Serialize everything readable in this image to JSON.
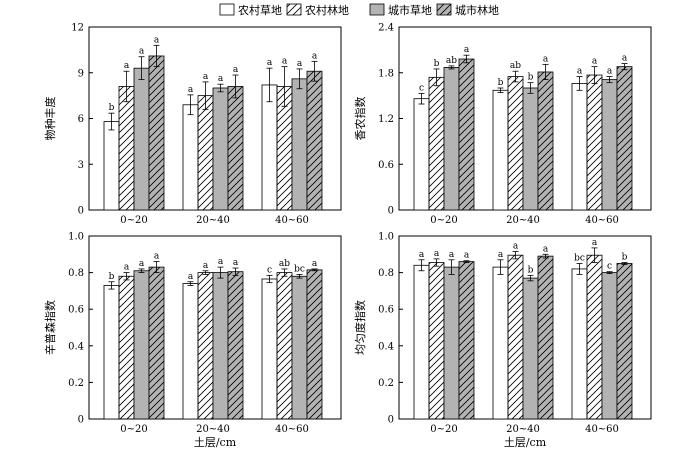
{
  "legend": [
    {
      "name": "农村草地",
      "fill": "#ffffff",
      "hatch": false
    },
    {
      "name": "农村林地",
      "fill": "#ffffff",
      "hatch": true
    },
    {
      "name": "城市草地",
      "fill": "#b3b3b3",
      "hatch": false
    },
    {
      "name": "城市林地",
      "fill": "#b3b3b3",
      "hatch": true
    }
  ],
  "xlabel": "土层/cm",
  "chart_data": [
    {
      "type": "bar",
      "panel": "top-left",
      "ylabel": "物种丰度",
      "categories": [
        "0~20",
        "20~40",
        "40~60"
      ],
      "ylim": [
        0,
        12
      ],
      "yticks": [
        0,
        3,
        6,
        9,
        12
      ],
      "series": [
        {
          "name": "农村草地",
          "values": [
            5.8,
            6.9,
            8.2
          ],
          "errors": [
            0.55,
            0.65,
            1.1
          ],
          "labels": [
            "b",
            "a",
            "a"
          ]
        },
        {
          "name": "农村林地",
          "values": [
            8.1,
            7.5,
            8.1
          ],
          "errors": [
            1.0,
            0.9,
            1.3
          ],
          "labels": [
            "a",
            "a",
            "a"
          ]
        },
        {
          "name": "城市草地",
          "values": [
            9.3,
            8.0,
            8.6
          ],
          "errors": [
            0.75,
            0.25,
            0.65
          ],
          "labels": [
            "a",
            "a",
            "a"
          ]
        },
        {
          "name": "城市林地",
          "values": [
            10.1,
            8.1,
            9.1
          ],
          "errors": [
            0.7,
            0.75,
            0.65
          ],
          "labels": [
            "a",
            "a",
            "a"
          ]
        }
      ]
    },
    {
      "type": "bar",
      "panel": "top-right",
      "ylabel": "香农指数",
      "categories": [
        "0~20",
        "20~40",
        "40~60"
      ],
      "ylim": [
        0,
        2.4
      ],
      "yticks": [
        0,
        0.6,
        1.2,
        1.8,
        2.4
      ],
      "yticklabels": [
        "0",
        "0.6",
        "1.2",
        "1.8",
        "2.4"
      ],
      "series": [
        {
          "name": "农村草地",
          "values": [
            1.46,
            1.57,
            1.66
          ],
          "errors": [
            0.07,
            0.03,
            0.09
          ],
          "labels": [
            "c",
            "b",
            "a"
          ]
        },
        {
          "name": "农村林地",
          "values": [
            1.74,
            1.75,
            1.77
          ],
          "errors": [
            0.11,
            0.07,
            0.11
          ],
          "labels": [
            "b",
            "ab",
            "a"
          ]
        },
        {
          "name": "城市草地",
          "values": [
            1.87,
            1.6,
            1.71
          ],
          "errors": [
            0.02,
            0.07,
            0.04
          ],
          "labels": [
            "ab",
            "b",
            "a"
          ]
        },
        {
          "name": "城市林地",
          "values": [
            1.98,
            1.81,
            1.88
          ],
          "errors": [
            0.05,
            0.1,
            0.04
          ],
          "labels": [
            "a",
            "a",
            "a"
          ]
        }
      ]
    },
    {
      "type": "bar",
      "panel": "bottom-left",
      "ylabel": "辛普森指数",
      "categories": [
        "0~20",
        "20~40",
        "40~60"
      ],
      "ylim": [
        0,
        1.0
      ],
      "yticks": [
        0,
        0.2,
        0.4,
        0.6,
        0.8,
        1.0
      ],
      "yticklabels": [
        "0",
        "0.2",
        "0.4",
        "0.6",
        "0.8",
        "1.0"
      ],
      "series": [
        {
          "name": "农村草地",
          "values": [
            0.73,
            0.74,
            0.765
          ],
          "errors": [
            0.02,
            0.01,
            0.02
          ],
          "labels": [
            "b",
            "a",
            "c"
          ]
        },
        {
          "name": "农村林地",
          "values": [
            0.78,
            0.8,
            0.8
          ],
          "errors": [
            0.02,
            0.01,
            0.02
          ],
          "labels": [
            "a",
            "a",
            "ab"
          ]
        },
        {
          "name": "城市草地",
          "values": [
            0.81,
            0.8,
            0.78
          ],
          "errors": [
            0.01,
            0.03,
            0.01
          ],
          "labels": [
            "a",
            "a",
            "bc"
          ]
        },
        {
          "name": "城市林地",
          "values": [
            0.83,
            0.805,
            0.815
          ],
          "errors": [
            0.03,
            0.02,
            0.005
          ],
          "labels": [
            "a",
            "a",
            "a"
          ]
        }
      ]
    },
    {
      "type": "bar",
      "panel": "bottom-right",
      "ylabel": "均匀度指数",
      "categories": [
        "0~20",
        "20~40",
        "40~60"
      ],
      "ylim": [
        0,
        1.0
      ],
      "yticks": [
        0,
        0.2,
        0.4,
        0.6,
        0.8,
        1.0
      ],
      "yticklabels": [
        "0",
        "0.2",
        "0.4",
        "0.6",
        "0.8",
        "1.0"
      ],
      "series": [
        {
          "name": "农村草地",
          "values": [
            0.84,
            0.83,
            0.82
          ],
          "errors": [
            0.03,
            0.04,
            0.03
          ],
          "labels": [
            "a",
            "a",
            "bc"
          ]
        },
        {
          "name": "农村林地",
          "values": [
            0.855,
            0.895,
            0.895
          ],
          "errors": [
            0.02,
            0.02,
            0.04
          ],
          "labels": [
            "a",
            "a",
            "a"
          ]
        },
        {
          "name": "城市草地",
          "values": [
            0.83,
            0.77,
            0.8
          ],
          "errors": [
            0.04,
            0.015,
            0.005
          ],
          "labels": [
            "a",
            "b",
            "c"
          ]
        },
        {
          "name": "城市林地",
          "values": [
            0.86,
            0.89,
            0.85
          ],
          "errors": [
            0.005,
            0.01,
            0.005
          ],
          "labels": [
            "a",
            "a",
            "b"
          ]
        }
      ]
    }
  ]
}
